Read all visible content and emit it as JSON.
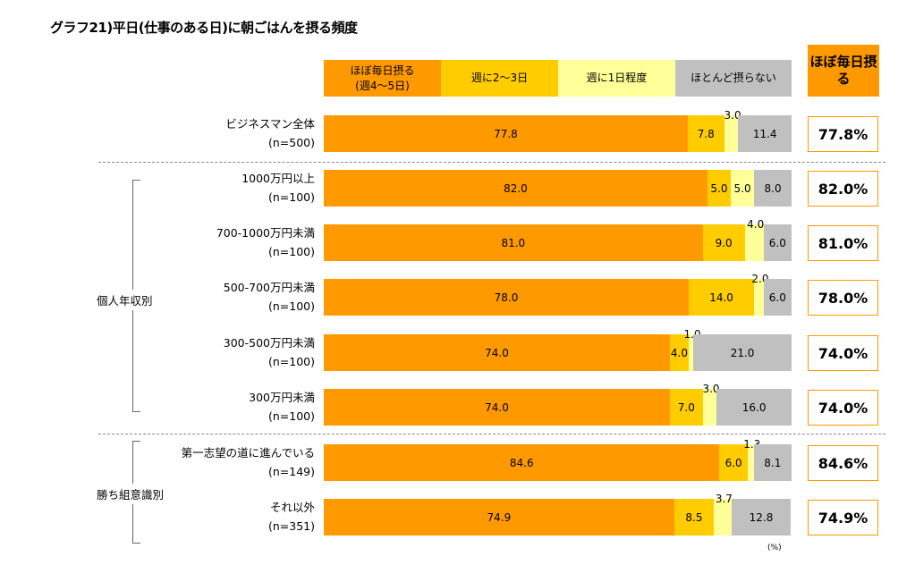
{
  "title": "グラフ21)平日(仕事のある日)に朝ごはんを摂る頻度",
  "summary_header": "ほぼ毎日摂る",
  "unit": "(%)",
  "colors": {
    "ほぼ毎日摂る": "#FF9900",
    "週に2〜3日": "#FFCC00",
    "週に1日程度": "#FFFF99",
    "ほとんど摂らない": "#C0C0C0",
    "box_border": "#FF9900"
  },
  "legend": [
    "ほぼ毎日摂る(週4〜5日)",
    "週に2〜3日",
    "週に1日程度",
    "ほとんど摂らない"
  ],
  "groups": [
    {
      "label": "個人年収別"
    },
    {
      "label": "勝ち組意識別"
    }
  ],
  "chart_data": {
    "type": "bar",
    "orientation": "horizontal",
    "stacked": true,
    "xlim": [
      0,
      100
    ],
    "series": [
      {
        "name": "ほぼ毎日摂る(週4〜5日)"
      },
      {
        "name": "週に2〜3日"
      },
      {
        "name": "週に1日程度"
      },
      {
        "name": "ほとんど摂らない"
      }
    ],
    "rows": [
      {
        "label": "ビジネスマン全体",
        "n": "(n=500)",
        "values": [
          77.8,
          7.8,
          3.0,
          11.4
        ],
        "labels": [
          "77.8",
          "7.8",
          "3.0",
          "11.4"
        ],
        "summary": "77.8%"
      },
      {
        "label": "1000万円以上",
        "n": "(n=100)",
        "values": [
          82.0,
          5.0,
          5.0,
          8.0
        ],
        "labels": [
          "82.0",
          "5.0",
          "5.0",
          "8.0"
        ],
        "summary": "82.0%"
      },
      {
        "label": "700-1000万円未満",
        "n": "(n=100)",
        "values": [
          81.0,
          9.0,
          4.0,
          6.0
        ],
        "labels": [
          "81.0",
          "9.0",
          "4.0",
          "6.0"
        ],
        "summary": "81.0%"
      },
      {
        "label": "500-700万円未満",
        "n": "(n=100)",
        "values": [
          78.0,
          14.0,
          2.0,
          6.0
        ],
        "labels": [
          "78.0",
          "14.0",
          "2.0",
          "6.0"
        ],
        "summary": "78.0%"
      },
      {
        "label": "300-500万円未満",
        "n": "(n=100)",
        "values": [
          74.0,
          4.0,
          1.0,
          21.0
        ],
        "labels": [
          "74.0",
          "4.0",
          "1.0",
          "21.0"
        ],
        "summary": "74.0%"
      },
      {
        "label": "300万円未満",
        "n": "(n=100)",
        "values": [
          74.0,
          7.0,
          3.0,
          16.0
        ],
        "labels": [
          "74.0",
          "7.0",
          "3.0",
          "16.0"
        ],
        "summary": "74.0%"
      },
      {
        "label": "第一志望の道に進んでいる",
        "n": "(n=149)",
        "values": [
          84.6,
          6.0,
          1.3,
          8.1
        ],
        "labels": [
          "84.6",
          "6.0",
          "1.3",
          "8.1"
        ],
        "summary": "84.6%"
      },
      {
        "label": "それ以外",
        "n": "(n=351)",
        "values": [
          74.9,
          8.5,
          3.7,
          12.8
        ],
        "labels": [
          "74.9",
          "8.5",
          "3.7",
          "12.8"
        ],
        "summary": "74.9%"
      }
    ]
  }
}
